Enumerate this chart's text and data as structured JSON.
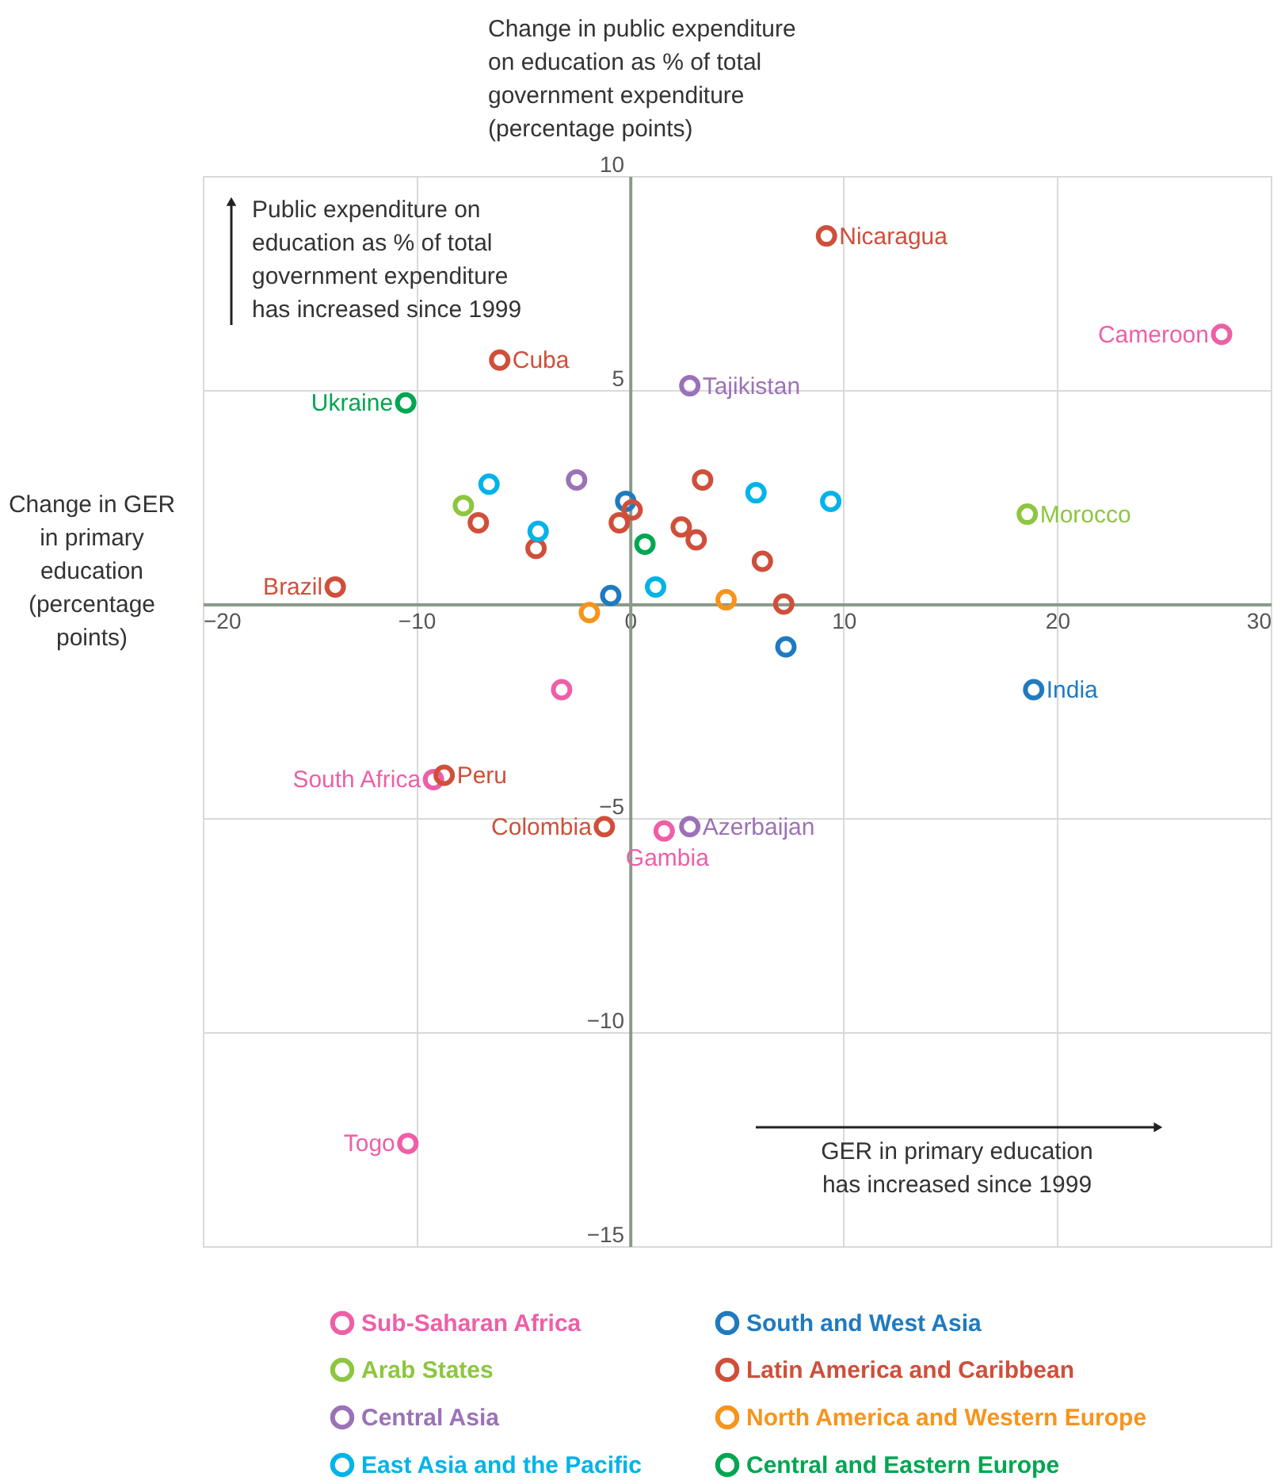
{
  "chart_data": {
    "type": "scatter",
    "ylabel": "Change in public expenditure\non education as % of total\ngovernment expenditure\n(percentage points)",
    "xlabel": "Change in GER\nin primary\neducation\n(percentage\npoints)",
    "xlim": [
      -20,
      30
    ],
    "xticks": [
      -20,
      -10,
      0,
      10,
      20,
      30
    ],
    "ylim": [
      -15,
      10
    ],
    "yticks": [
      -15,
      -10,
      -5,
      {
        "value": 0,
        "label": null
      },
      5,
      10
    ],
    "grid": true,
    "legend": "bottom",
    "marker": "circle",
    "series": [
      {
        "name": "Sub-Saharan Africa",
        "color": "#ee5fa7",
        "x": [
          27.7,
          -10.4,
          -9.2,
          1.6,
          -3.2
        ],
        "values": [
          6.3,
          -12.6,
          -4.1,
          -5.3,
          -2.0
        ]
      },
      {
        "name": "South and West Asia",
        "color": "#1f7ac0",
        "x": [
          18.9,
          -0.2,
          -0.9,
          7.3
        ],
        "values": [
          -2.0,
          2.4,
          0.2,
          -1.0
        ]
      },
      {
        "name": "Arab States",
        "color": "#8dc63f",
        "x": [
          18.6,
          -7.8
        ],
        "values": [
          2.1,
          2.3
        ]
      },
      {
        "name": "Latin America and Caribbean",
        "color": "#cf4f3a",
        "x": [
          9.2,
          -6.1,
          -13.8,
          -8.7,
          -1.2,
          -7.1,
          -4.4,
          -0.5,
          0.1,
          2.4,
          3.1,
          3.4,
          6.2,
          7.2
        ],
        "values": [
          8.6,
          5.7,
          0.4,
          -4.0,
          -5.2,
          1.9,
          1.3,
          1.9,
          2.2,
          1.8,
          1.5,
          2.9,
          1.0,
          0.0
        ]
      },
      {
        "name": "Central Asia",
        "color": "#9b72b7",
        "x": [
          2.8,
          2.8,
          -2.5
        ],
        "values": [
          5.1,
          -5.2,
          2.9
        ]
      },
      {
        "name": "North America and Western Europe",
        "color": "#f7941d",
        "x": [
          4.5,
          -1.9
        ],
        "values": [
          0.1,
          -0.2
        ]
      },
      {
        "name": "East Asia and the Pacific",
        "color": "#00b3e8",
        "x": [
          -6.6,
          -4.3,
          5.9,
          9.4,
          1.2
        ],
        "values": [
          2.8,
          1.7,
          2.6,
          2.4,
          0.4
        ]
      },
      {
        "name": "Central and Eastern Europe",
        "color": "#00a651",
        "x": [
          -10.5,
          0.7
        ],
        "values": [
          4.7,
          1.4
        ]
      }
    ],
    "annotations": [
      "Public expenditure on\neducation as % of total\ngovernment expenditure\nhas increased since 1999",
      "GER in primary education\nhas increased since 1999",
      {
        "text": "Nicaragua",
        "x": 9.2,
        "y": 8.6
      },
      {
        "text": "Cameroon",
        "x": 27.7,
        "y": 6.3
      },
      {
        "text": "Cuba",
        "x": -6.1,
        "y": 5.7
      },
      {
        "text": "Tajikistan",
        "x": 2.8,
        "y": 5.1
      },
      {
        "text": "Ukraine",
        "x": -10.5,
        "y": 4.7
      },
      {
        "text": "Morocco",
        "x": 18.6,
        "y": 2.1
      },
      {
        "text": "Brazil",
        "x": -13.8,
        "y": 0.4
      },
      {
        "text": "India",
        "x": 18.9,
        "y": -2.0
      },
      {
        "text": "South Africa",
        "x": -9.2,
        "y": -4.1
      },
      {
        "text": "Peru",
        "x": -8.7,
        "y": -4.0
      },
      {
        "text": "Colombia",
        "x": -1.2,
        "y": -5.2
      },
      {
        "text": "Azerbaijan",
        "x": 2.8,
        "y": -5.2
      },
      {
        "text": "Gambia",
        "x": 1.6,
        "y": -5.3
      },
      {
        "text": "Togo",
        "x": -10.4,
        "y": -12.6
      }
    ]
  }
}
